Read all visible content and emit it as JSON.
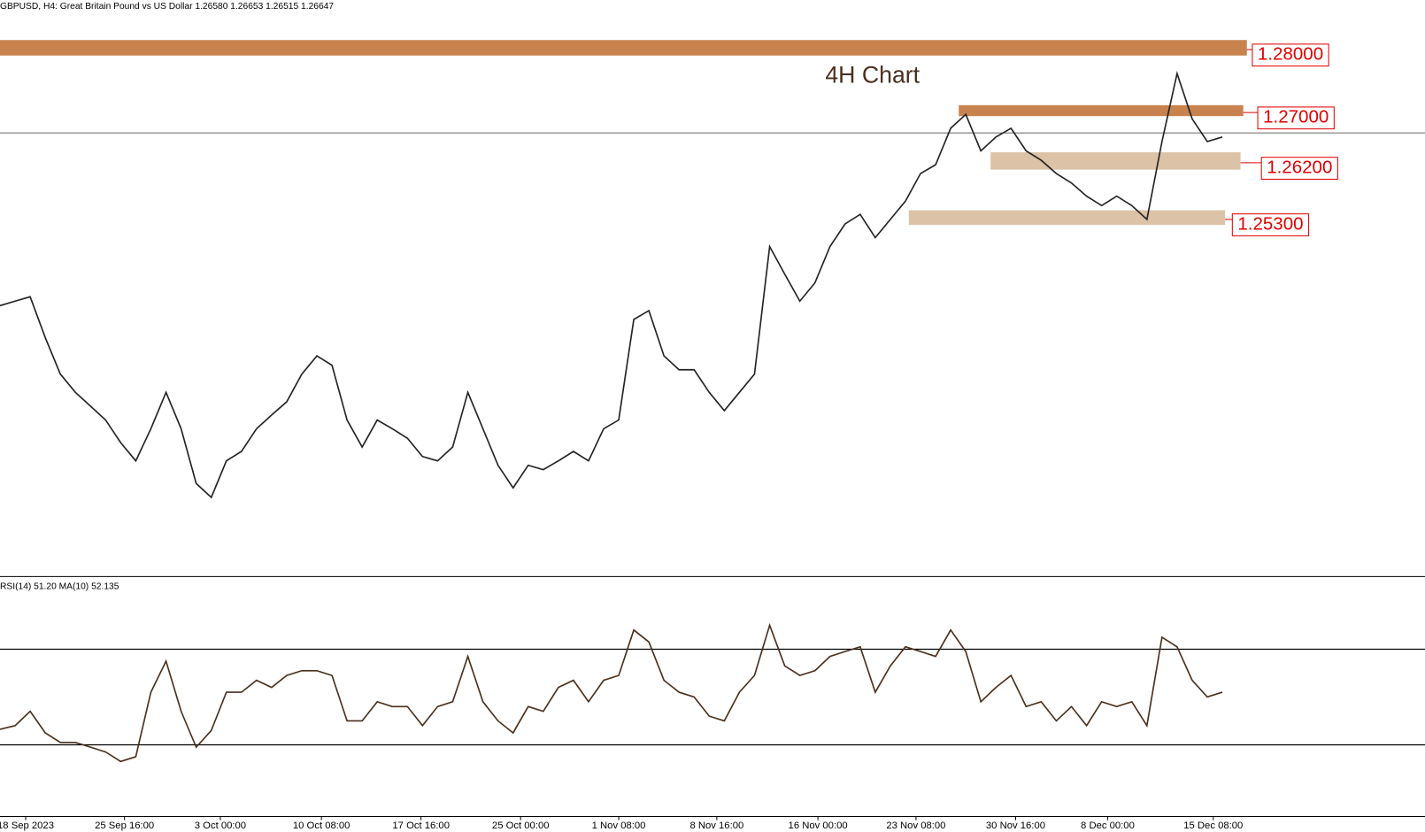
{
  "chart_data": [
    {
      "type": "line",
      "title": "GBPUSD, H4:  Great Britain Pound vs US Dollar  1.26580 1.26653 1.26515 1.26647",
      "annotation": "4H Chart",
      "color": "#222222",
      "xlim": [
        0,
        81
      ],
      "ylim": [
        1.1959,
        1.2876
      ],
      "current_price": 1.26647,
      "values": [
        1.239,
        1.2397,
        1.2404,
        1.2339,
        1.2281,
        1.2252,
        1.223,
        1.2208,
        1.2172,
        1.2143,
        1.2194,
        1.2252,
        1.2194,
        1.2107,
        1.2085,
        1.2143,
        1.2158,
        1.2194,
        1.2216,
        1.2237,
        1.2281,
        1.231,
        1.2295,
        1.2208,
        1.2165,
        1.2208,
        1.2194,
        1.2179,
        1.215,
        1.2143,
        1.2165,
        1.2252,
        1.2194,
        1.2136,
        1.21,
        1.2136,
        1.2129,
        1.2143,
        1.2158,
        1.2143,
        1.2194,
        1.2208,
        1.2368,
        1.2382,
        1.231,
        1.2288,
        1.2288,
        1.2252,
        1.2223,
        1.2252,
        1.2281,
        1.2484,
        1.244,
        1.2397,
        1.2426,
        1.2484,
        1.252,
        1.2535,
        1.2498,
        1.2527,
        1.2556,
        1.26,
        1.2614,
        1.2672,
        1.2694,
        1.2636,
        1.2658,
        1.2672,
        1.2636,
        1.2621,
        1.26,
        1.2585,
        1.2564,
        1.2549,
        1.2564,
        1.2549,
        1.2527,
        1.2651,
        1.2759,
        1.2687,
        1.2651,
        1.2658
      ],
      "levels": {
        "values": [
          1.28,
          1.27,
          1.262,
          1.253
        ],
        "value_labels": [
          "1.28000",
          "1.27000",
          "1.26200",
          "1.25300"
        ],
        "colors": [
          "#c8824e",
          "#c8824e",
          "#dcc2a6",
          "#dcc2a6"
        ]
      }
    },
    {
      "type": "line",
      "title": "RSI(14) 51.20 MA(10) 52.135",
      "color": "#4a2f1c",
      "xlim": [
        0,
        81
      ],
      "ylim": [
        0,
        100
      ],
      "levels": [
        30,
        70
      ],
      "values": [
        36.5,
        38,
        44,
        35,
        31,
        31,
        29,
        27,
        23,
        25,
        52,
        65,
        44,
        29,
        36,
        52,
        52,
        57,
        54,
        59,
        61,
        61,
        59,
        40,
        40,
        48,
        46,
        46,
        38,
        46,
        48,
        67,
        48,
        40,
        35,
        46,
        44,
        54,
        57,
        48,
        57,
        59,
        78,
        73,
        57,
        52,
        50,
        42,
        40,
        52,
        59,
        80,
        63,
        59,
        61,
        67,
        69,
        71,
        52,
        63,
        71,
        69,
        67,
        78,
        69,
        48,
        54,
        59,
        46,
        48,
        40,
        46,
        38,
        48,
        46,
        48,
        38,
        75,
        71,
        57,
        50,
        52
      ],
      "xticks": [
        {
          "value": 1.7,
          "label": "18 Sep 2023"
        },
        {
          "value": 8.25,
          "label": "25 Sep 16:00"
        },
        {
          "value": 14.6,
          "label": "3 Oct 00:00"
        },
        {
          "value": 21.3,
          "label": "10 Oct 08:00"
        },
        {
          "value": 27.9,
          "label": "17 Oct 16:00"
        },
        {
          "value": 34.5,
          "label": "25 Oct 00:00"
        },
        {
          "value": 41,
          "label": "1 Nov 08:00"
        },
        {
          "value": 47.5,
          "label": "8 Nov 16:00"
        },
        {
          "value": 54.2,
          "label": "16 Nov 00:00"
        },
        {
          "value": 60.7,
          "label": "23 Nov 08:00"
        },
        {
          "value": 67.3,
          "label": "30 Nov 16:00"
        },
        {
          "value": 73.4,
          "label": "8 Dec 00:00"
        },
        {
          "value": 80.4,
          "label": "15 Dec 08:00"
        }
      ]
    }
  ]
}
